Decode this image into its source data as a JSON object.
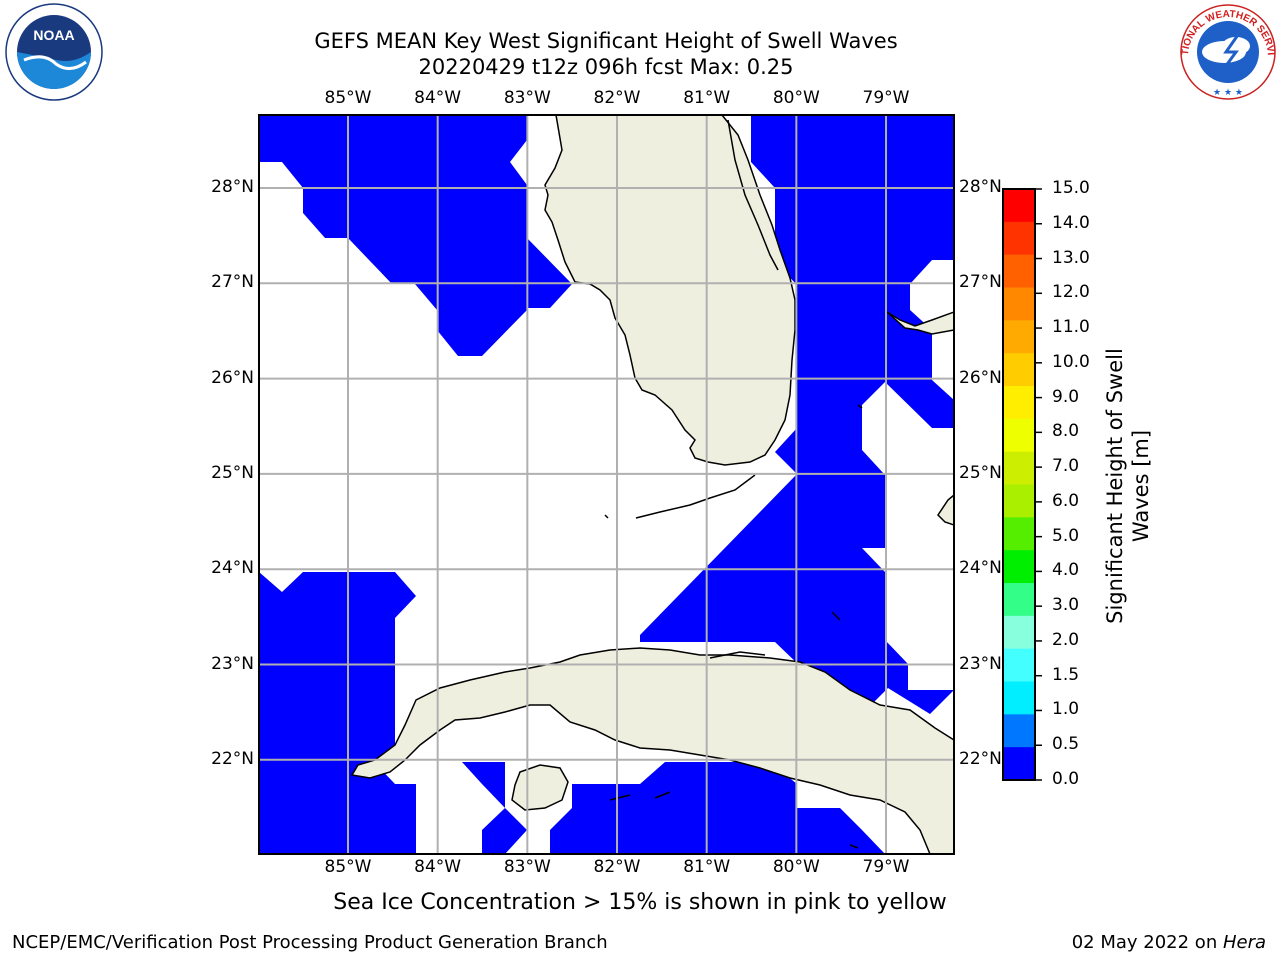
{
  "title": {
    "line1": "GEFS MEAN Key West Significant Height of Swell Waves",
    "line2": "20220429 t12z 096h fcst   Max: 0.25"
  },
  "logos": {
    "left": "NOAA",
    "right": "NATIONAL WEATHER SERVICE"
  },
  "map": {
    "lon_labels": [
      "85°W",
      "84°W",
      "83°W",
      "82°W",
      "81°W",
      "80°W",
      "79°W"
    ],
    "lat_labels": [
      "28°N",
      "27°N",
      "26°N",
      "25°N",
      "24°N",
      "23°N",
      "22°N"
    ],
    "lon_range": [
      -86,
      -78.3
    ],
    "lat_range": [
      21,
      28.8
    ],
    "colors": {
      "land": "#efefdf",
      "swell_low": "#0000ff",
      "grid": "#b0b0b0"
    }
  },
  "colorbar": {
    "title_line1": "Significant Height of Swell",
    "title_line2": "Waves [m]",
    "ticks": [
      "15.0",
      "14.0",
      "13.0",
      "12.0",
      "11.0",
      "10.0",
      "9.0",
      "8.0",
      "7.0",
      "6.0",
      "5.0",
      "4.0",
      "3.0",
      "2.0",
      "1.5",
      "1.0",
      "0.5",
      "0.0"
    ],
    "colors": [
      "#ff0000",
      "#ff3300",
      "#ff6000",
      "#ff8800",
      "#ffaa00",
      "#ffcc00",
      "#ffee00",
      "#eeff00",
      "#ccee00",
      "#aaee00",
      "#55ee00",
      "#00ee00",
      "#33ff88",
      "#88ffdd",
      "#44ffff",
      "#00eeff",
      "#0077ff",
      "#0000ff"
    ]
  },
  "caption": "Sea Ice Concentration > 15% is shown in pink to yellow",
  "footer": {
    "left": "NCEP/EMC/Verification Post Processing Product Generation Branch",
    "date": "02 May 2022 on ",
    "host": "Hera"
  }
}
